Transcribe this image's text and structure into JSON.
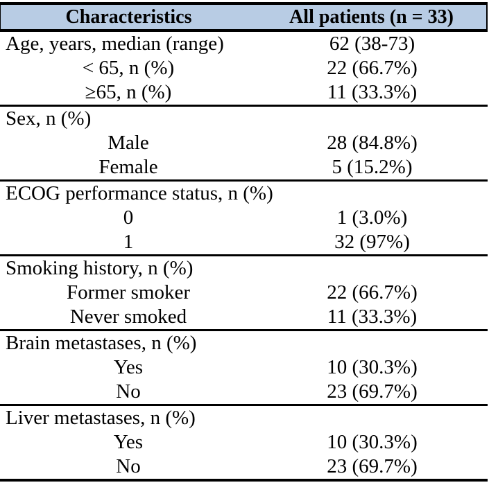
{
  "meta": {
    "colors": {
      "header_background": "#b8cce4",
      "rule": "#000000",
      "text": "#000000",
      "page_background": "#ffffff"
    }
  },
  "table": {
    "header": {
      "col1": "Characteristics",
      "col2": "All patients (n = 33)"
    },
    "sections": [
      {
        "rows": [
          {
            "label": "Age, years, median (range)",
            "value": "62 (38-73)"
          },
          {
            "label": "< 65, n (%)",
            "value": "22 (66.7%)"
          },
          {
            "label": "≥65, n (%)",
            "value": "11 (33.3%)"
          }
        ]
      },
      {
        "rows": [
          {
            "label": "Sex, n (%)",
            "value": ""
          },
          {
            "label": "Male",
            "value": "28 (84.8%)"
          },
          {
            "label": "Female",
            "value": "5 (15.2%)"
          }
        ]
      },
      {
        "rows": [
          {
            "label": "ECOG performance status, n (%)",
            "value": ""
          },
          {
            "label": "0",
            "value": "1 (3.0%)"
          },
          {
            "label": "1",
            "value": "32 (97%)"
          }
        ]
      },
      {
        "rows": [
          {
            "label": "Smoking history, n (%)",
            "value": ""
          },
          {
            "label": "Former smoker",
            "value": "22 (66.7%)"
          },
          {
            "label": "Never smoked",
            "value": "11 (33.3%)"
          }
        ]
      },
      {
        "rows": [
          {
            "label": "Brain metastases, n (%)",
            "value": ""
          },
          {
            "label": "Yes",
            "value": "10 (30.3%)"
          },
          {
            "label": "No",
            "value": "23 (69.7%)"
          }
        ]
      },
      {
        "rows": [
          {
            "label": "Liver metastases, n (%)",
            "value": ""
          },
          {
            "label": "Yes",
            "value": "10 (30.3%)"
          },
          {
            "label": "No",
            "value": "23 (69.7%)"
          }
        ]
      }
    ]
  }
}
